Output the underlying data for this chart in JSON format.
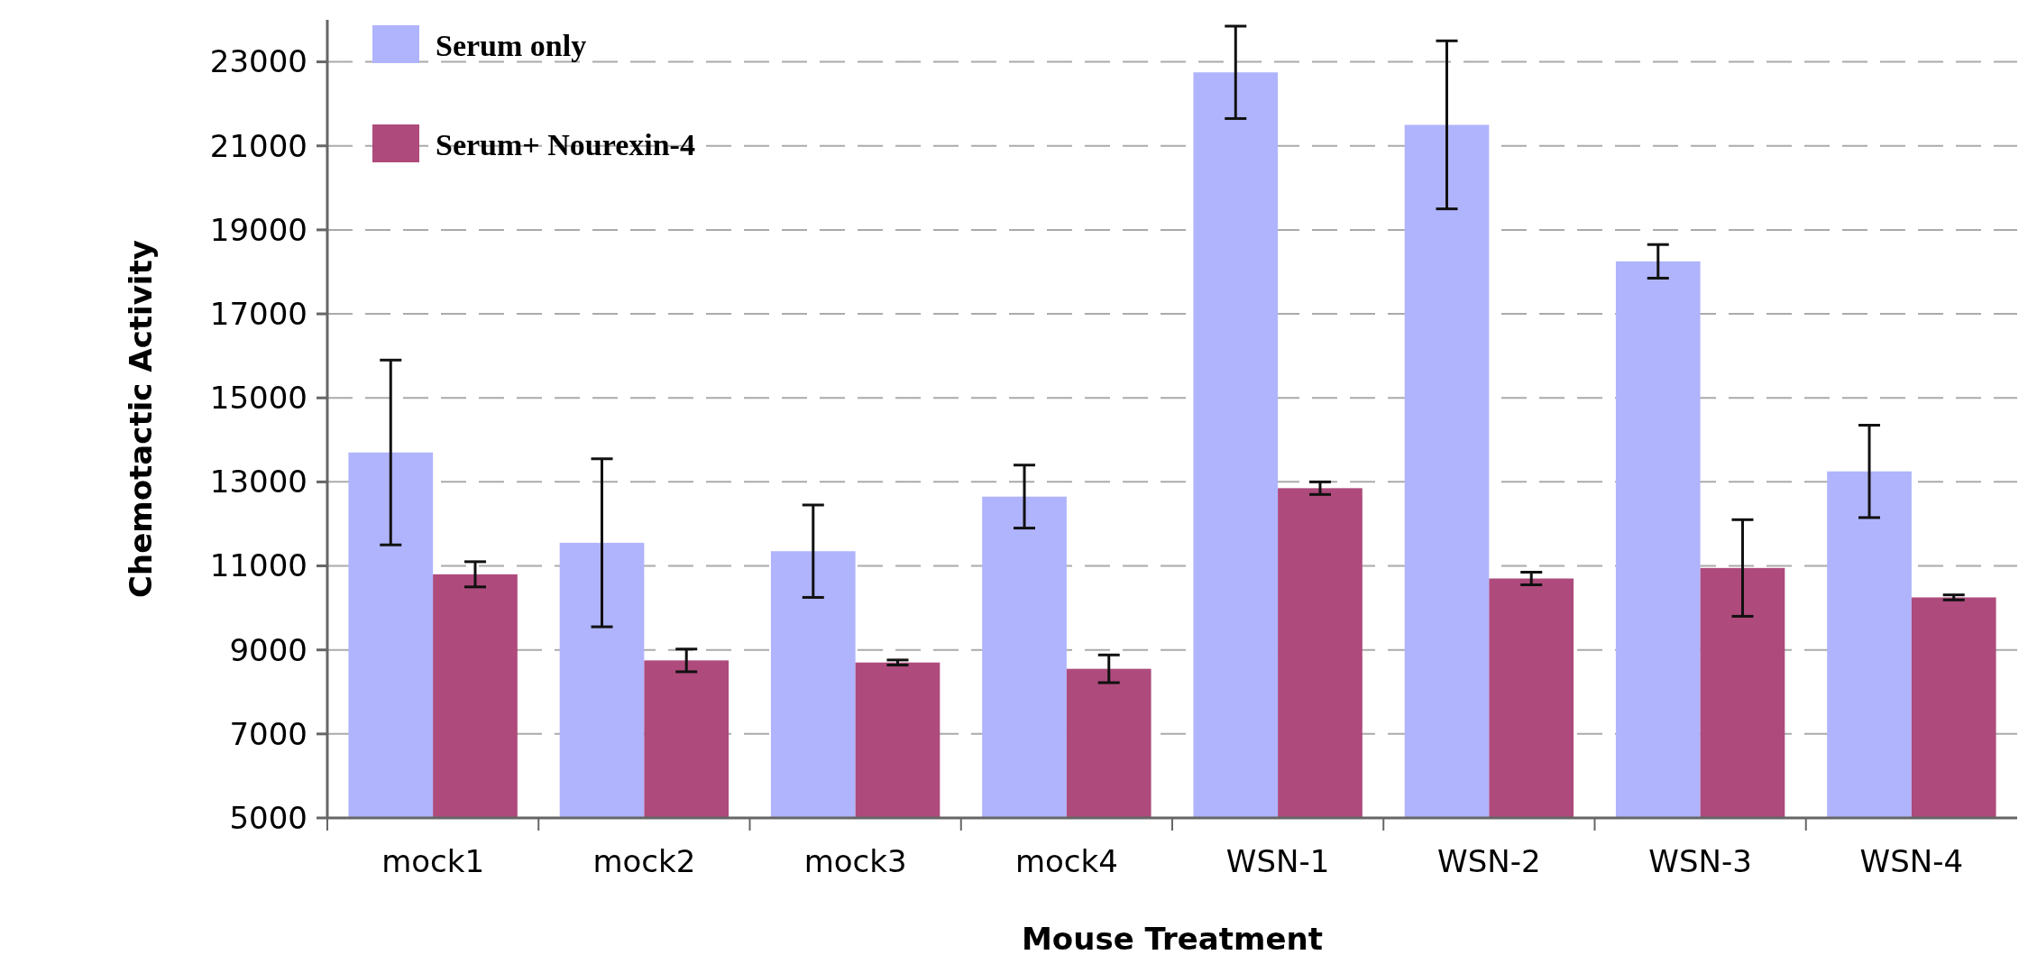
{
  "chart_data": {
    "type": "bar",
    "xlabel": "Mouse Treatment",
    "ylabel": "Chemotactic Activity",
    "categories": [
      "mock1",
      "mock2",
      "mock3",
      "mock4",
      "WSN-1",
      "WSN-2",
      "WSN-3",
      "WSN-4"
    ],
    "series": [
      {
        "name": "Serum only",
        "color": "#b0b4fc",
        "values": [
          13700,
          11550,
          11350,
          12650,
          22750,
          21500,
          18250,
          13250
        ],
        "errors": [
          2200,
          2000,
          1100,
          750,
          1100,
          2000,
          400,
          1100
        ]
      },
      {
        "name": "Serum+ Nourexin-4",
        "color": "#ae4a7c",
        "values": [
          10800,
          8750,
          8700,
          8550,
          12850,
          10700,
          10950,
          10250
        ],
        "errors": [
          300,
          270,
          60,
          330,
          150,
          150,
          1150,
          60
        ]
      }
    ],
    "ylim": [
      5000,
      24000
    ],
    "yticks": [
      5000,
      7000,
      9000,
      11000,
      13000,
      15000,
      17000,
      19000,
      21000,
      23000
    ],
    "grid": "y",
    "legend": "top left"
  }
}
